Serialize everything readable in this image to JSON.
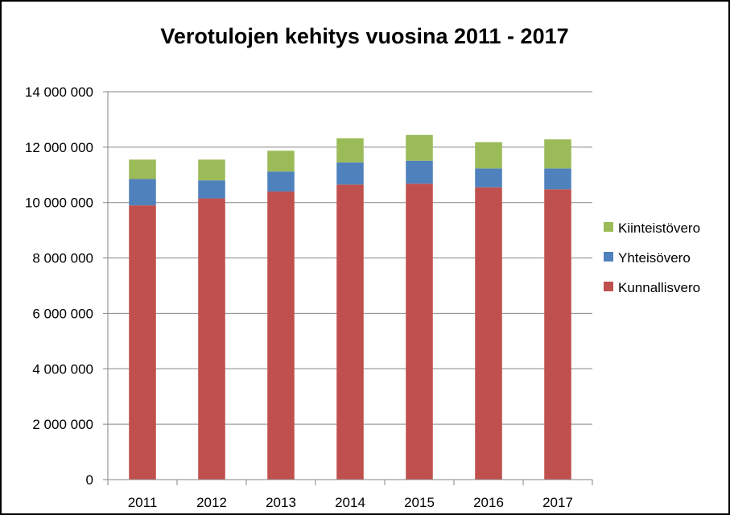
{
  "chart_data": {
    "type": "bar",
    "stacked": true,
    "title": "Verotulojen kehitys vuosina 2011 - 2017",
    "categories": [
      "2011",
      "2012",
      "2013",
      "2014",
      "2015",
      "2016",
      "2017"
    ],
    "ylim": [
      0,
      14000000
    ],
    "y_ticks": [
      {
        "value": 0,
        "label": "0"
      },
      {
        "value": 2000000,
        "label": "2 000 000"
      },
      {
        "value": 4000000,
        "label": "4 000 000"
      },
      {
        "value": 6000000,
        "label": "6 000 000"
      },
      {
        "value": 8000000,
        "label": "8 000 000"
      },
      {
        "value": 10000000,
        "label": "10 000 000"
      },
      {
        "value": 12000000,
        "label": "12 000 000"
      },
      {
        "value": 14000000,
        "label": "14 000 000"
      }
    ],
    "grid": "horizontal",
    "legend_position": "right",
    "series": [
      {
        "name": "Kunnallisvero",
        "color": "#C0504D",
        "values": [
          9900000,
          10150000,
          10400000,
          10650000,
          10680000,
          10550000,
          10480000
        ]
      },
      {
        "name": "Yhteisövero",
        "color": "#4F81BD",
        "values": [
          950000,
          650000,
          720000,
          800000,
          830000,
          680000,
          750000
        ]
      },
      {
        "name": "Kiinteistövero",
        "color": "#9BBB59",
        "values": [
          700000,
          750000,
          750000,
          870000,
          930000,
          950000,
          1050000
        ]
      }
    ],
    "legend_order": [
      "Kiinteistövero",
      "Yhteisövero",
      "Kunnallisvero"
    ]
  }
}
